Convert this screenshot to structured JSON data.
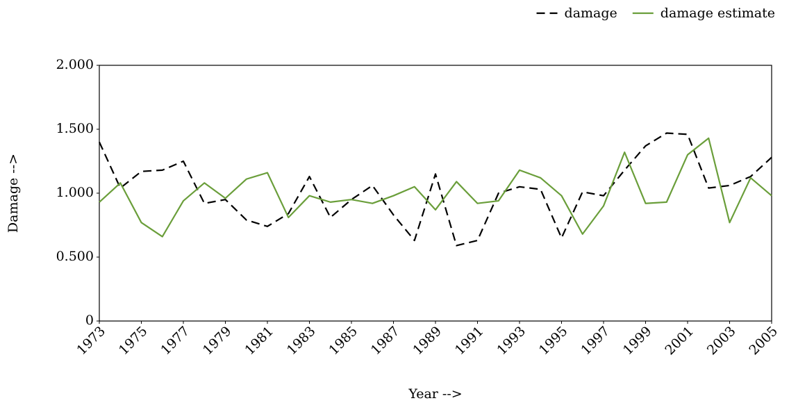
{
  "chart_data": {
    "type": "line",
    "xlabel": "Year -->",
    "ylabel": "Damage -->",
    "x": [
      1973,
      1974,
      1975,
      1976,
      1977,
      1978,
      1979,
      1980,
      1981,
      1982,
      1983,
      1984,
      1985,
      1986,
      1987,
      1988,
      1989,
      1990,
      1991,
      1992,
      1993,
      1994,
      1995,
      1996,
      1997,
      1998,
      1999,
      2000,
      2001,
      2002,
      2003,
      2004,
      2005
    ],
    "series": [
      {
        "name": "damage",
        "color": "#000000",
        "dash": true,
        "values": [
          1.4,
          1.04,
          1.17,
          1.18,
          1.25,
          0.92,
          0.95,
          0.79,
          0.74,
          0.84,
          1.13,
          0.81,
          0.95,
          1.06,
          0.83,
          0.63,
          1.15,
          0.59,
          0.63,
          1.0,
          1.05,
          1.03,
          0.65,
          1.01,
          0.98,
          1.18,
          1.37,
          1.47,
          1.46,
          1.04,
          1.06,
          1.13,
          1.28
        ]
      },
      {
        "name": "damage estimate",
        "color": "#6a9e3a",
        "dash": false,
        "values": [
          0.93,
          1.08,
          0.77,
          0.66,
          0.94,
          1.08,
          0.96,
          1.11,
          1.16,
          0.81,
          0.98,
          0.93,
          0.95,
          0.92,
          0.98,
          1.05,
          0.87,
          1.09,
          0.92,
          0.94,
          1.18,
          1.12,
          0.98,
          0.68,
          0.9,
          1.32,
          0.92,
          0.93,
          1.3,
          1.43,
          0.77,
          1.12,
          0.98
        ]
      }
    ],
    "xlim": [
      1973,
      2005
    ],
    "xticks": [
      1973,
      1975,
      1977,
      1979,
      1981,
      1983,
      1985,
      1987,
      1989,
      1991,
      1993,
      1995,
      1997,
      1999,
      2001,
      2003,
      2005
    ],
    "ylim": [
      0,
      2
    ],
    "yticks": [
      0,
      {
        "value": 0.5,
        "label": "0.500"
      },
      {
        "value": 1,
        "label": "1.000"
      },
      {
        "value": 1.5,
        "label": "1.500"
      },
      {
        "value": 2,
        "label": "2.000"
      }
    ],
    "legend": "top right"
  }
}
